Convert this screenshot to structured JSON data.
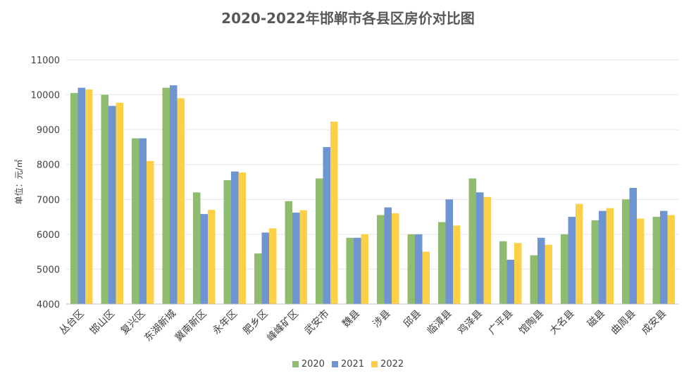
{
  "chart_data": {
    "type": "bar",
    "title": "2020-2022年邯郸市各县区房价对比图",
    "ylabel": "单位：元/㎡",
    "ylim": [
      4000,
      11000
    ],
    "yticks": [
      4000,
      5000,
      6000,
      7000,
      8000,
      9000,
      10000,
      11000
    ],
    "grid": true,
    "legend_position": "bottom",
    "categories": [
      "丛台区",
      "邯山区",
      "复兴区",
      "东湖新城",
      "冀南新区",
      "永年区",
      "肥乡区",
      "峰峰矿区",
      "武安市",
      "魏县",
      "涉县",
      "邱县",
      "临漳县",
      "鸡泽县",
      "广平县",
      "馆陶县",
      "大名县",
      "磁县",
      "曲周县",
      "成安县"
    ],
    "series": [
      {
        "name": "2020",
        "color": "#8fbc6f",
        "values": [
          10050,
          10000,
          8750,
          10200,
          7200,
          7550,
          5450,
          6950,
          7600,
          5900,
          6550,
          6000,
          6350,
          7600,
          5800,
          5400,
          6000,
          6400,
          7000,
          6500
        ]
      },
      {
        "name": "2021",
        "color": "#6e95d2",
        "values": [
          10200,
          9680,
          8750,
          10270,
          6580,
          7800,
          6050,
          6620,
          8500,
          5900,
          6770,
          6000,
          7000,
          7200,
          5270,
          5900,
          6500,
          6670,
          7330,
          6670
        ]
      },
      {
        "name": "2022",
        "color": "#fcd047",
        "values": [
          10150,
          9770,
          8100,
          9900,
          6700,
          7770,
          6170,
          6690,
          9230,
          6000,
          6600,
          5500,
          6250,
          7070,
          5750,
          5700,
          6870,
          6750,
          6450,
          6550
        ]
      }
    ]
  }
}
